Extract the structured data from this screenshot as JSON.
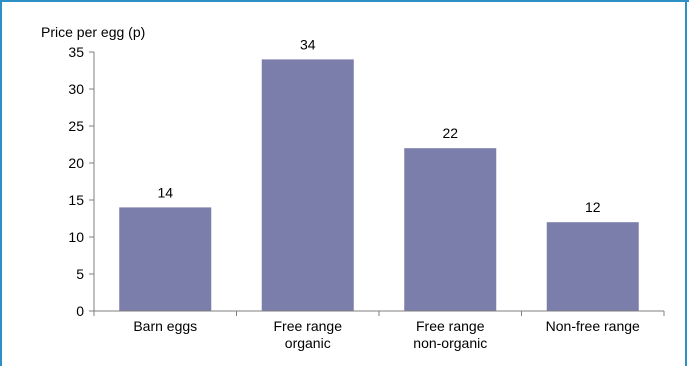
{
  "colors": {
    "bar": "#7b7dab",
    "frame": "#2e8fc5",
    "axis": "#7f7f7f"
  },
  "chart_data": {
    "type": "bar",
    "title": "",
    "xlabel": "",
    "ylabel": "Price per egg (p)",
    "ylim": [
      0,
      35
    ],
    "yticks": [
      0,
      5,
      10,
      15,
      20,
      25,
      30,
      35
    ],
    "grid": false,
    "categories": [
      [
        "Barn eggs"
      ],
      [
        "Free range",
        "organic"
      ],
      [
        "Free range",
        "non-organic"
      ],
      [
        "Non-free range"
      ]
    ],
    "values": [
      14,
      34,
      22,
      12
    ]
  }
}
